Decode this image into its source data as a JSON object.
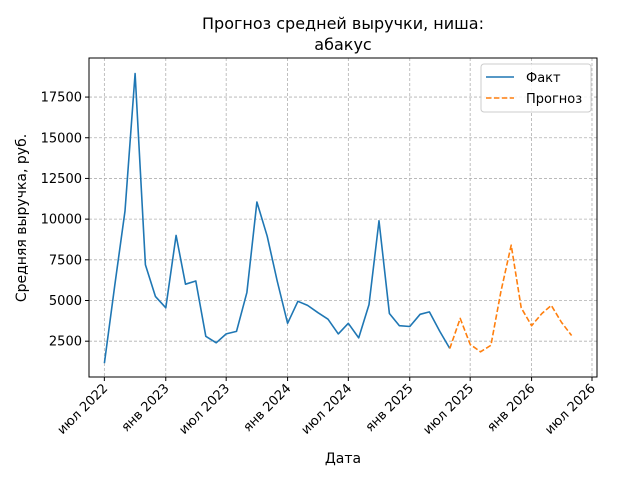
{
  "chart_data": {
    "type": "line",
    "title_line1": "Прогноз средней выручки, ниша:",
    "title_line2": "абакус",
    "xlabel": "Дата",
    "ylabel": "Средняя выручка, руб.",
    "grid": true,
    "legend_position": "top-right",
    "x_ticks": [
      "июл 2022",
      "янв 2023",
      "июл 2023",
      "янв 2024",
      "июл 2024",
      "янв 2025",
      "июл 2025",
      "янв 2026",
      "июл 2026"
    ],
    "x_tick_dates": [
      "2022-07-01",
      "2023-01-01",
      "2023-07-01",
      "2024-01-01",
      "2024-07-01",
      "2025-01-01",
      "2025-07-01",
      "2026-01-01",
      "2026-07-01"
    ],
    "xlim": [
      "2022-05-16",
      "2026-07-16"
    ],
    "y_ticks": [
      2500,
      5000,
      7500,
      10000,
      12500,
      15000,
      17500
    ],
    "y_tick_labels": [
      "2500",
      "5000",
      "7500",
      "10000",
      "12500",
      "15000",
      "17500"
    ],
    "ylim": [
      300,
      19900
    ],
    "series": [
      {
        "name": "Факт",
        "color": "#1f77b4",
        "style": "solid",
        "x": [
          "2022-07-01",
          "2022-08-01",
          "2022-09-01",
          "2022-10-01",
          "2022-11-01",
          "2022-12-01",
          "2023-01-01",
          "2023-02-01",
          "2023-03-01",
          "2023-04-01",
          "2023-05-01",
          "2023-06-01",
          "2023-07-01",
          "2023-08-01",
          "2023-09-01",
          "2023-10-01",
          "2023-11-01",
          "2023-12-01",
          "2024-01-01",
          "2024-02-01",
          "2024-03-01",
          "2024-04-01",
          "2024-05-01",
          "2024-06-01",
          "2024-07-01",
          "2024-08-01",
          "2024-09-01",
          "2024-10-01",
          "2024-11-01",
          "2024-12-01",
          "2025-01-01",
          "2025-02-01",
          "2025-03-01",
          "2025-04-01",
          "2025-05-01"
        ],
        "values": [
          1150,
          5900,
          10500,
          18950,
          7200,
          5250,
          4550,
          9000,
          6000,
          6200,
          2800,
          2400,
          2950,
          3100,
          5500,
          11050,
          8950,
          6200,
          3600,
          4950,
          4700,
          4250,
          3850,
          2950,
          3600,
          2700,
          4750,
          9900,
          4200,
          3450,
          3400,
          4150,
          4300,
          3100,
          2050
        ]
      },
      {
        "name": "Прогноз",
        "color": "#ff7f0e",
        "style": "dashed",
        "x": [
          "2025-05-01",
          "2025-06-01",
          "2025-07-01",
          "2025-08-01",
          "2025-09-01",
          "2025-10-01",
          "2025-11-01",
          "2025-12-01",
          "2026-01-01",
          "2026-02-01",
          "2026-03-01",
          "2026-04-01",
          "2026-05-01"
        ],
        "values": [
          2050,
          3900,
          2300,
          1850,
          2250,
          5550,
          8400,
          4550,
          3450,
          4200,
          4700,
          3650,
          2850
        ]
      }
    ]
  }
}
